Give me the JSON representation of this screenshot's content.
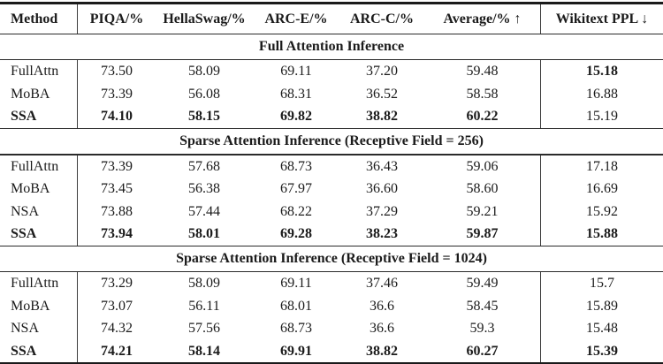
{
  "colors": {
    "background": "#ffffff",
    "text": "#1b1b1b",
    "rule": "#1a1a1a",
    "separator": "#3c3c3c"
  },
  "table": {
    "columns": [
      "Method",
      "PIQA/%",
      "HellaSwag/%",
      "ARC-E/%",
      "ARC-C/%",
      "Average/% ↑",
      "Wikitext PPL ↓"
    ],
    "sections": [
      {
        "title": "Full Attention Inference",
        "rows": [
          {
            "method": "FullAttn",
            "values": [
              "73.50",
              "58.09",
              "69.11",
              "37.20",
              "59.48",
              "15.18"
            ]
          },
          {
            "method": "MoBA",
            "values": [
              "73.39",
              "56.08",
              "68.31",
              "36.52",
              "58.58",
              "16.88"
            ]
          },
          {
            "method": "SSA",
            "values": [
              "74.10",
              "58.15",
              "69.82",
              "38.82",
              "60.22",
              "15.19"
            ]
          }
        ]
      },
      {
        "title": "Sparse Attention Inference (Receptive Field = 256)",
        "rows": [
          {
            "method": "FullAttn",
            "values": [
              "73.39",
              "57.68",
              "68.73",
              "36.43",
              "59.06",
              "17.18"
            ]
          },
          {
            "method": "MoBA",
            "values": [
              "73.45",
              "56.38",
              "67.97",
              "36.60",
              "58.60",
              "16.69"
            ]
          },
          {
            "method": "NSA",
            "values": [
              "73.88",
              "57.44",
              "68.22",
              "37.29",
              "59.21",
              "15.92"
            ]
          },
          {
            "method": "SSA",
            "values": [
              "73.94",
              "58.01",
              "69.28",
              "38.23",
              "59.87",
              "15.88"
            ]
          }
        ]
      },
      {
        "title": "Sparse Attention Inference (Receptive Field = 1024)",
        "rows": [
          {
            "method": "FullAttn",
            "values": [
              "73.29",
              "58.09",
              "69.11",
              "37.46",
              "59.49",
              "15.7"
            ]
          },
          {
            "method": "MoBA",
            "values": [
              "73.07",
              "56.11",
              "68.01",
              "36.6",
              "58.45",
              "15.89"
            ]
          },
          {
            "method": "NSA",
            "values": [
              "74.32",
              "57.56",
              "68.73",
              "36.6",
              "59.3",
              "15.48"
            ]
          },
          {
            "method": "SSA",
            "values": [
              "74.21",
              "58.14",
              "69.91",
              "38.82",
              "60.27",
              "15.39"
            ]
          }
        ]
      }
    ]
  }
}
